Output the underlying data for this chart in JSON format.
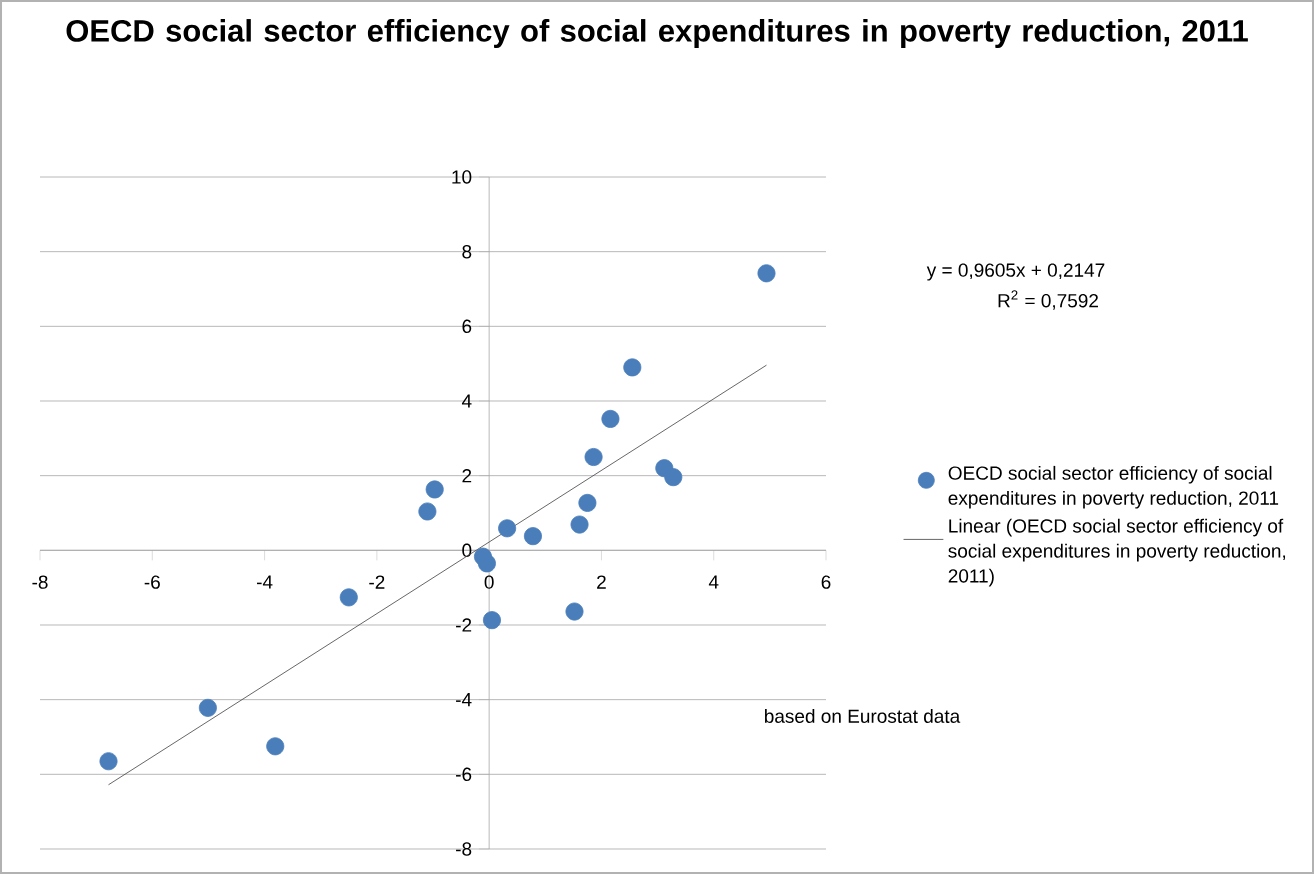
{
  "chart_data": {
    "type": "scatter",
    "title": "OECD social sector efficiency of social expenditures in poverty reduction, 2011",
    "xlim": [
      -8,
      6
    ],
    "xticks": [
      -8,
      -6,
      -4,
      -2,
      0,
      2,
      4,
      6
    ],
    "ylim": [
      -8,
      10
    ],
    "yticks": [
      -8,
      -6,
      -4,
      -2,
      0,
      2,
      4,
      6,
      8,
      10
    ],
    "grid": "y",
    "legend": "right",
    "marker": "circle",
    "annotations": [
      "y = 0,9605x + 0,2147",
      "R$^{2}$ = 0,7592",
      "based on Eurostat data"
    ],
    "series": [
      {
        "name": "OECD social sector efficiency of social expenditures in poverty reduction, 2011",
        "color": "#4a7ebb",
        "x": [
          4.94,
          2.55,
          2.16,
          1.86,
          3.12,
          3.28,
          1.75,
          1.61,
          0.78,
          0.32,
          -0.97,
          -1.1,
          -0.11,
          -0.04,
          0.05,
          1.52,
          -2.5,
          -5.01,
          -3.81,
          -6.78
        ],
        "values": [
          7.42,
          4.9,
          3.52,
          2.5,
          2.2,
          1.96,
          1.27,
          0.69,
          0.38,
          0.59,
          1.63,
          1.04,
          -0.17,
          -0.35,
          -1.87,
          -1.64,
          -1.26,
          -4.22,
          -5.25,
          -5.65
        ]
      },
      {
        "name": "Linear (OECD social sector efficiency of social expenditures in poverty reduction, 2011)",
        "color": "#404040",
        "type": "line",
        "marker": "none",
        "x": [
          -6.78,
          4.94
        ],
        "values": [
          -6.28,
          4.96
        ]
      }
    ]
  }
}
